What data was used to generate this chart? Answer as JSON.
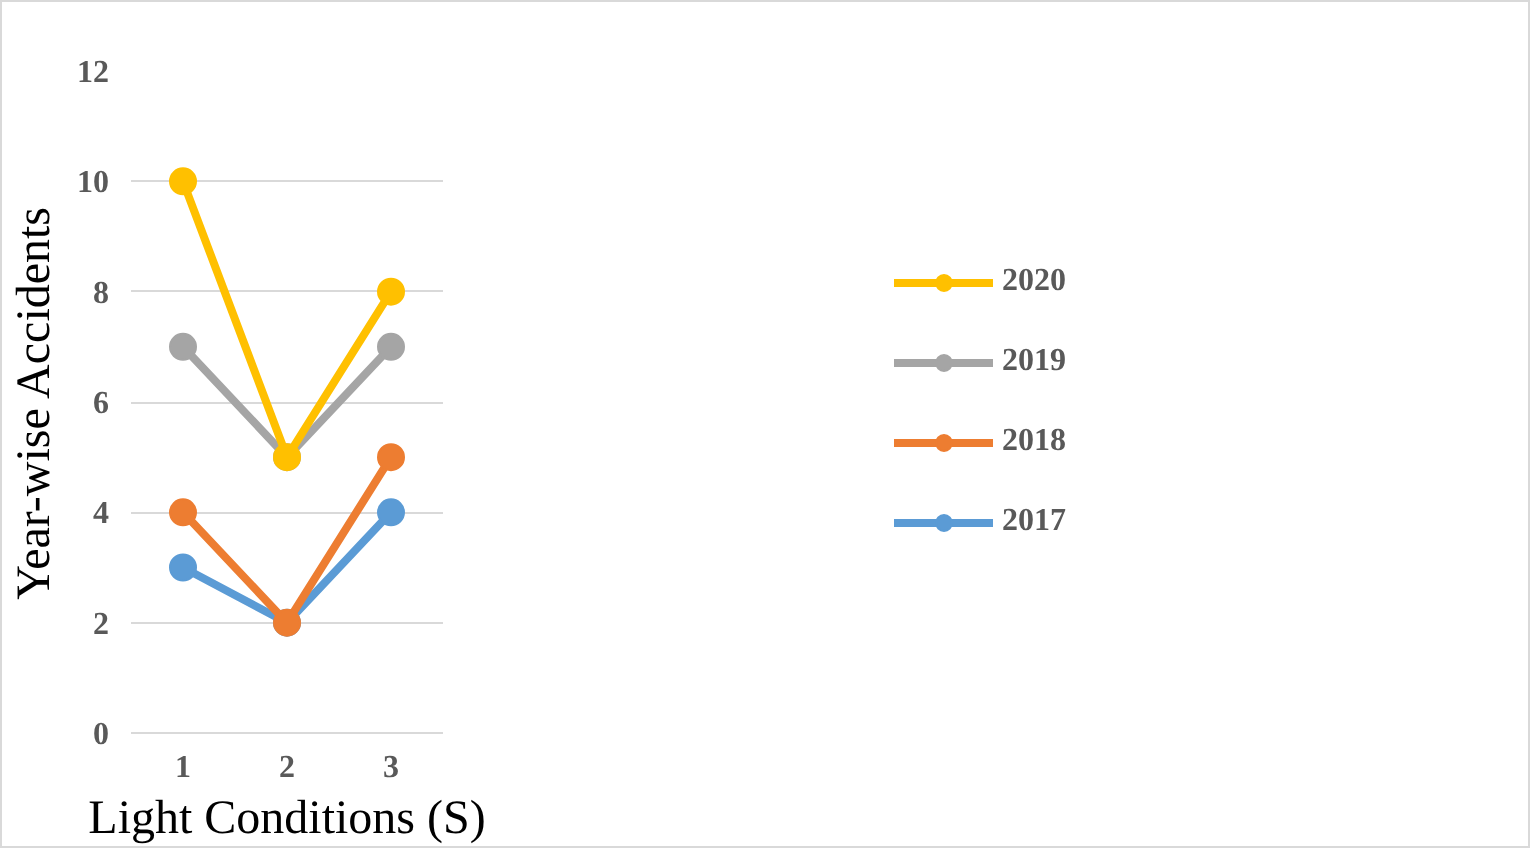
{
  "chart_data": {
    "type": "line",
    "xlabel": "Light Conditions (S)",
    "ylabel": "Year-wise Accidents",
    "categories": [
      "1",
      "2",
      "3"
    ],
    "series": [
      {
        "name": "2020",
        "color": "#ffc000",
        "values": [
          10,
          5,
          8
        ]
      },
      {
        "name": "2019",
        "color": "#a5a5a5",
        "values": [
          7,
          5,
          7
        ]
      },
      {
        "name": "2018",
        "color": "#ed7d31",
        "values": [
          4,
          2,
          5
        ]
      },
      {
        "name": "2017",
        "color": "#5b9bd5",
        "values": [
          3,
          2,
          4
        ]
      }
    ],
    "ylim": [
      0,
      12
    ],
    "yticks": [
      0,
      2,
      4,
      6,
      8,
      10,
      12
    ],
    "grid": "y",
    "legend": "right",
    "marker": "circle",
    "line_style": "solid"
  }
}
